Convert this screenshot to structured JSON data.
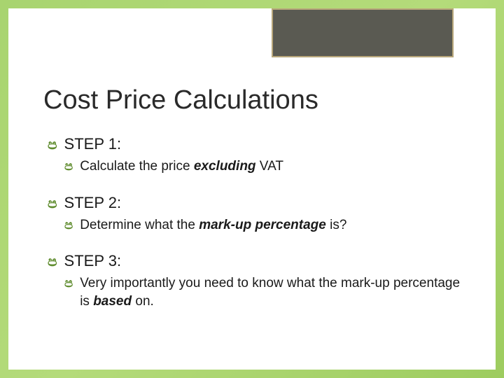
{
  "title": "Cost Price Calculations",
  "bullet_glyph": "ප",
  "colors": {
    "background_gradient_start": "#a8d46f",
    "background_gradient_mid": "#b4db7a",
    "background_gradient_end": "#9dcc5f",
    "slide_bg": "#ffffff",
    "deco_box_fill": "#5a5a52",
    "deco_box_border": "#b8a77a",
    "bullet_color": "#5f8c2e",
    "text_color": "#1a1a1a"
  },
  "typography": {
    "title_fontsize": 38,
    "step_fontsize": 22,
    "sub_fontsize": 19,
    "font_family": "Arial"
  },
  "steps": [
    {
      "head": "STEP 1:",
      "sub_prefix": "Calculate the price ",
      "sub_emph": "excluding",
      "sub_suffix": " VAT"
    },
    {
      "head": "STEP 2:",
      "sub_prefix": "Determine what the ",
      "sub_emph": "mark-up percentage",
      "sub_suffix": " is?"
    },
    {
      "head": "STEP 3:",
      "sub_prefix": "Very importantly you need to know what the mark-up percentage is ",
      "sub_emph": "based",
      "sub_suffix": " on."
    }
  ]
}
